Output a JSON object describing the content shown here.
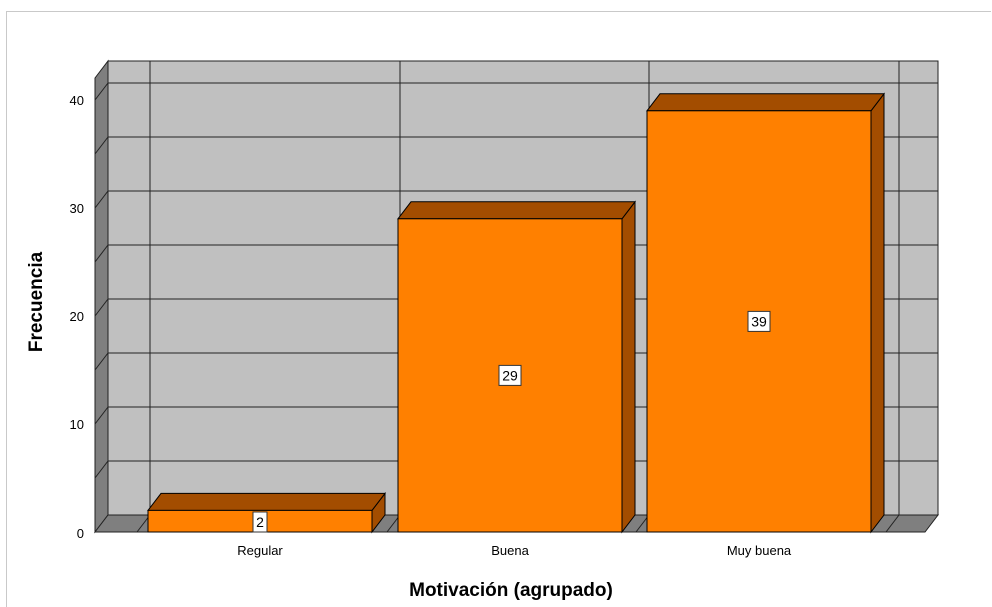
{
  "chart_data": {
    "type": "bar",
    "style": "3d",
    "categories": [
      "Regular",
      "Buena",
      "Muy buena"
    ],
    "values": [
      2,
      29,
      39
    ],
    "xlabel": "Motivación (agrupado)",
    "ylabel": "Frecuencia",
    "ylim": [
      0,
      40
    ],
    "yticks": [
      "0",
      "10",
      "20",
      "30",
      "40"
    ],
    "grid": true,
    "legend": "none",
    "data_labels": [
      "2",
      "29",
      "39"
    ],
    "colors": {
      "bar_front": "#ff8000",
      "bar_top": "#a34d00",
      "bar_side": "#a34d00",
      "plot_back": "#c0c0c0",
      "side_wall": "#7f7f7f",
      "floor": "#7f7f7f",
      "grid": "#222222"
    }
  }
}
